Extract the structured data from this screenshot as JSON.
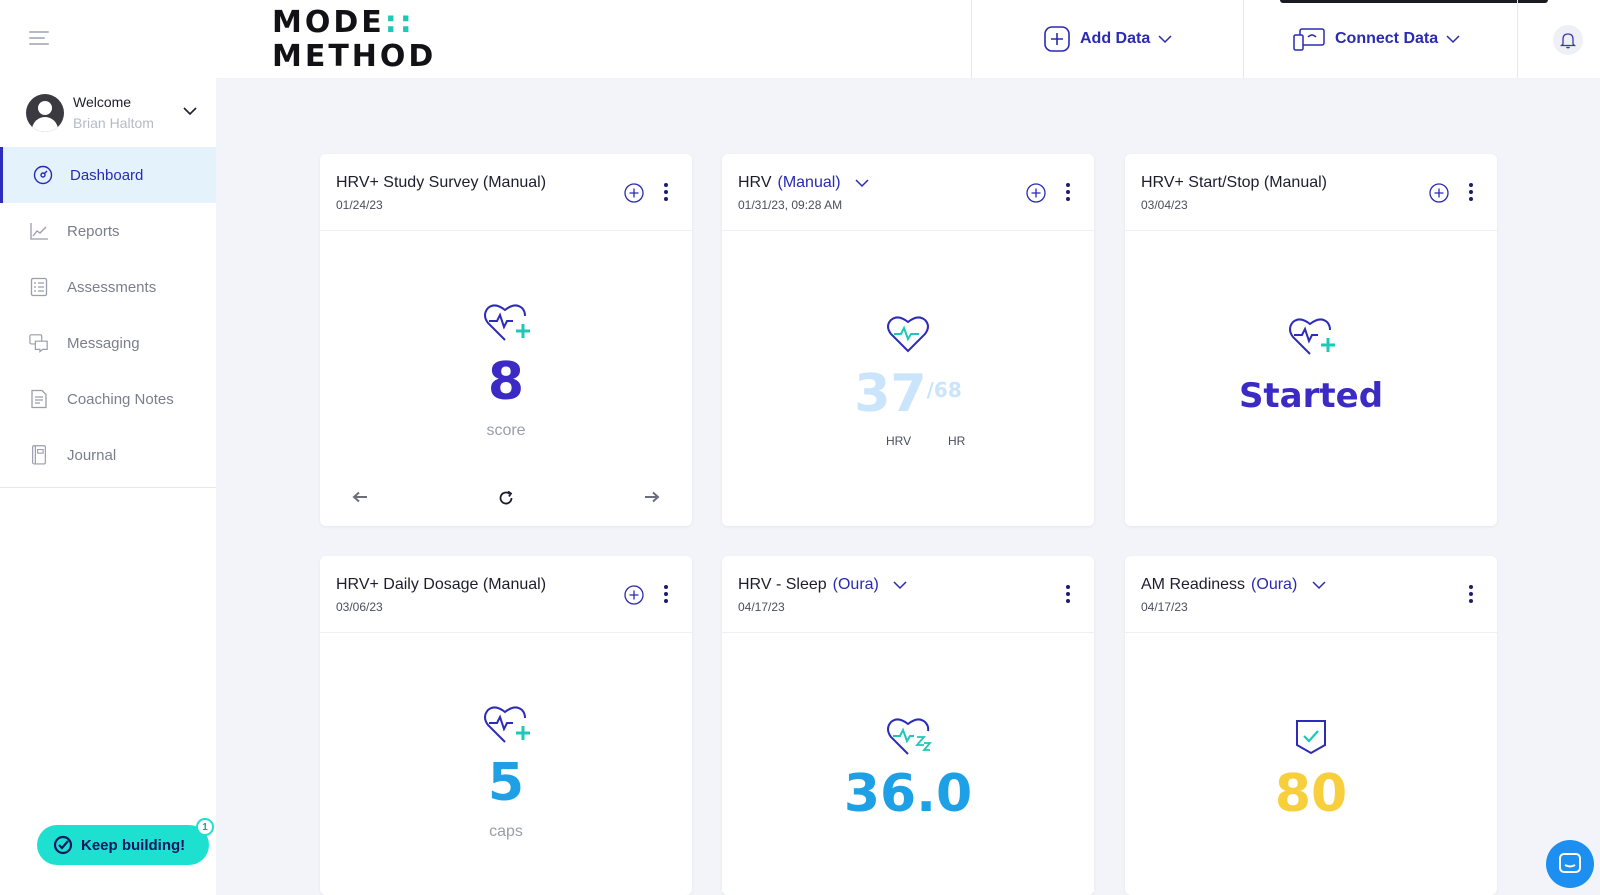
{
  "app": {
    "logo_line1": "MODE",
    "logo_dots": "::",
    "logo_line2": "METHOD"
  },
  "header": {
    "add_data_label": "Add Data",
    "connect_data_label": "Connect Data"
  },
  "user": {
    "welcome": "Welcome",
    "name": "Brian Haltom"
  },
  "sidebar": {
    "items": [
      {
        "label": "Dashboard",
        "icon": "gauge-icon",
        "active": true
      },
      {
        "label": "Reports",
        "icon": "chart-icon"
      },
      {
        "label": "Assessments",
        "icon": "checklist-icon"
      },
      {
        "label": "Messaging",
        "icon": "chat-icon"
      },
      {
        "label": "Coaching Notes",
        "icon": "notes-icon"
      },
      {
        "label": "Journal",
        "icon": "journal-icon"
      }
    ]
  },
  "keep_building": {
    "label": "Keep building!",
    "badge": "1"
  },
  "cards": [
    {
      "title": "HRV+ Study Survey (Manual)",
      "date": "01/24/23",
      "value": "8",
      "unit": "score"
    },
    {
      "title": "HRV",
      "source": "(Manual)",
      "date": "01/31/23, 09:28 AM",
      "value": "37",
      "value_secondary": "/68",
      "label_a": "HRV",
      "label_b": "HR"
    },
    {
      "title": "HRV+ Start/Stop (Manual)",
      "date": "03/04/23",
      "value": "Started"
    },
    {
      "title": "HRV+ Daily Dosage (Manual)",
      "date": "03/06/23",
      "value": "5",
      "unit": "caps"
    },
    {
      "title": "HRV - Sleep",
      "source": "(Oura)",
      "date": "04/17/23",
      "value": "36.0"
    },
    {
      "title": "AM Readiness",
      "source": "(Oura)",
      "date": "04/17/23",
      "value": "80"
    }
  ],
  "colors": {
    "brand_blue": "#2a2ab3",
    "teal": "#1ec8b8",
    "score_purple": "#3b2bc4",
    "faded_blue": "#c9e4fb",
    "sky_blue": "#1ea0e6",
    "yellow": "#f7cf3d"
  }
}
